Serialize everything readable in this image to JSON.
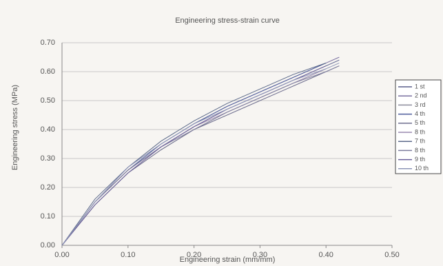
{
  "chart_data": {
    "type": "line",
    "title": "Engineering stress-strain curve",
    "x_label": "Engineering strain (mm/mm)",
    "y_label": "Engineering stress (MPa)",
    "x": [
      0,
      0.05,
      0.1,
      0.15,
      0.2,
      0.25,
      0.3,
      0.35,
      0.4,
      0.42
    ],
    "series": [
      {
        "name": "1 st",
        "color": "#5a5f8c",
        "values": [
          0,
          0.15,
          0.26,
          0.34,
          0.41,
          0.47,
          0.52,
          0.57,
          0.62,
          0.64
        ]
      },
      {
        "name": "2 nd",
        "color": "#7a6fa0",
        "values": [
          0,
          0.15,
          0.27,
          0.35,
          0.42,
          0.48,
          0.53,
          0.58,
          0.63,
          0.65
        ]
      },
      {
        "name": "3 rd",
        "color": "#8a8a9a",
        "values": [
          0,
          0.14,
          0.25,
          0.33,
          0.4,
          0.46,
          0.51,
          0.56,
          0.61,
          null
        ]
      },
      {
        "name": "4 th",
        "color": "#4a5a9a",
        "values": [
          0,
          0.15,
          0.26,
          0.35,
          0.42,
          0.48,
          0.53,
          0.58,
          0.63,
          null
        ]
      },
      {
        "name": "5 th",
        "color": "#6e6e8e",
        "values": [
          0,
          0.14,
          0.25,
          0.33,
          0.4,
          0.45,
          0.5,
          0.55,
          0.6,
          0.62
        ]
      },
      {
        "name": "8 th",
        "color": "#9a8ab0",
        "values": [
          0,
          0.15,
          0.26,
          0.34,
          0.41,
          0.46,
          0.51,
          0.56,
          0.61,
          null
        ]
      },
      {
        "name": "7 th",
        "color": "#5c6a8a",
        "values": [
          0,
          0.16,
          0.27,
          0.36,
          0.43,
          0.49,
          0.54,
          0.59,
          0.63,
          null
        ]
      },
      {
        "name": "8 th",
        "color": "#7d7d9d",
        "values": [
          0,
          0.15,
          0.26,
          0.34,
          0.4,
          0.46,
          0.51,
          0.56,
          0.6,
          0.62
        ]
      },
      {
        "name": "9 th",
        "color": "#6a5f9a",
        "values": [
          0,
          0.14,
          0.25,
          0.34,
          0.41,
          0.47,
          0.52,
          0.57,
          0.62,
          null
        ]
      },
      {
        "name": "10 th",
        "color": "#8e96b8",
        "values": [
          0,
          0.15,
          0.27,
          0.35,
          0.42,
          0.47,
          0.52,
          0.57,
          0.61,
          0.63
        ]
      }
    ],
    "xlim": [
      0,
      0.5
    ],
    "xticks": [
      {
        "value": 0,
        "label": "0.00"
      },
      {
        "value": 0.1,
        "label": "0.10"
      },
      {
        "value": 0.2,
        "label": "0.20"
      },
      {
        "value": 0.3,
        "label": "0.30"
      },
      {
        "value": 0.4,
        "label": "0.40"
      },
      {
        "value": 0.5,
        "label": "0.50"
      }
    ],
    "ylim": [
      0,
      0.7
    ],
    "yticks": [
      {
        "value": 0,
        "label": "0.00"
      },
      {
        "value": 0.1,
        "label": "0.10"
      },
      {
        "value": 0.2,
        "label": "0.20"
      },
      {
        "value": 0.3,
        "label": "0.30"
      },
      {
        "value": 0.4,
        "label": "0.40"
      },
      {
        "value": 0.5,
        "label": "0.50"
      },
      {
        "value": 0.6,
        "label": "0.60"
      },
      {
        "value": 0.7,
        "label": "0.70"
      }
    ],
    "grid": true,
    "legend": "right"
  }
}
